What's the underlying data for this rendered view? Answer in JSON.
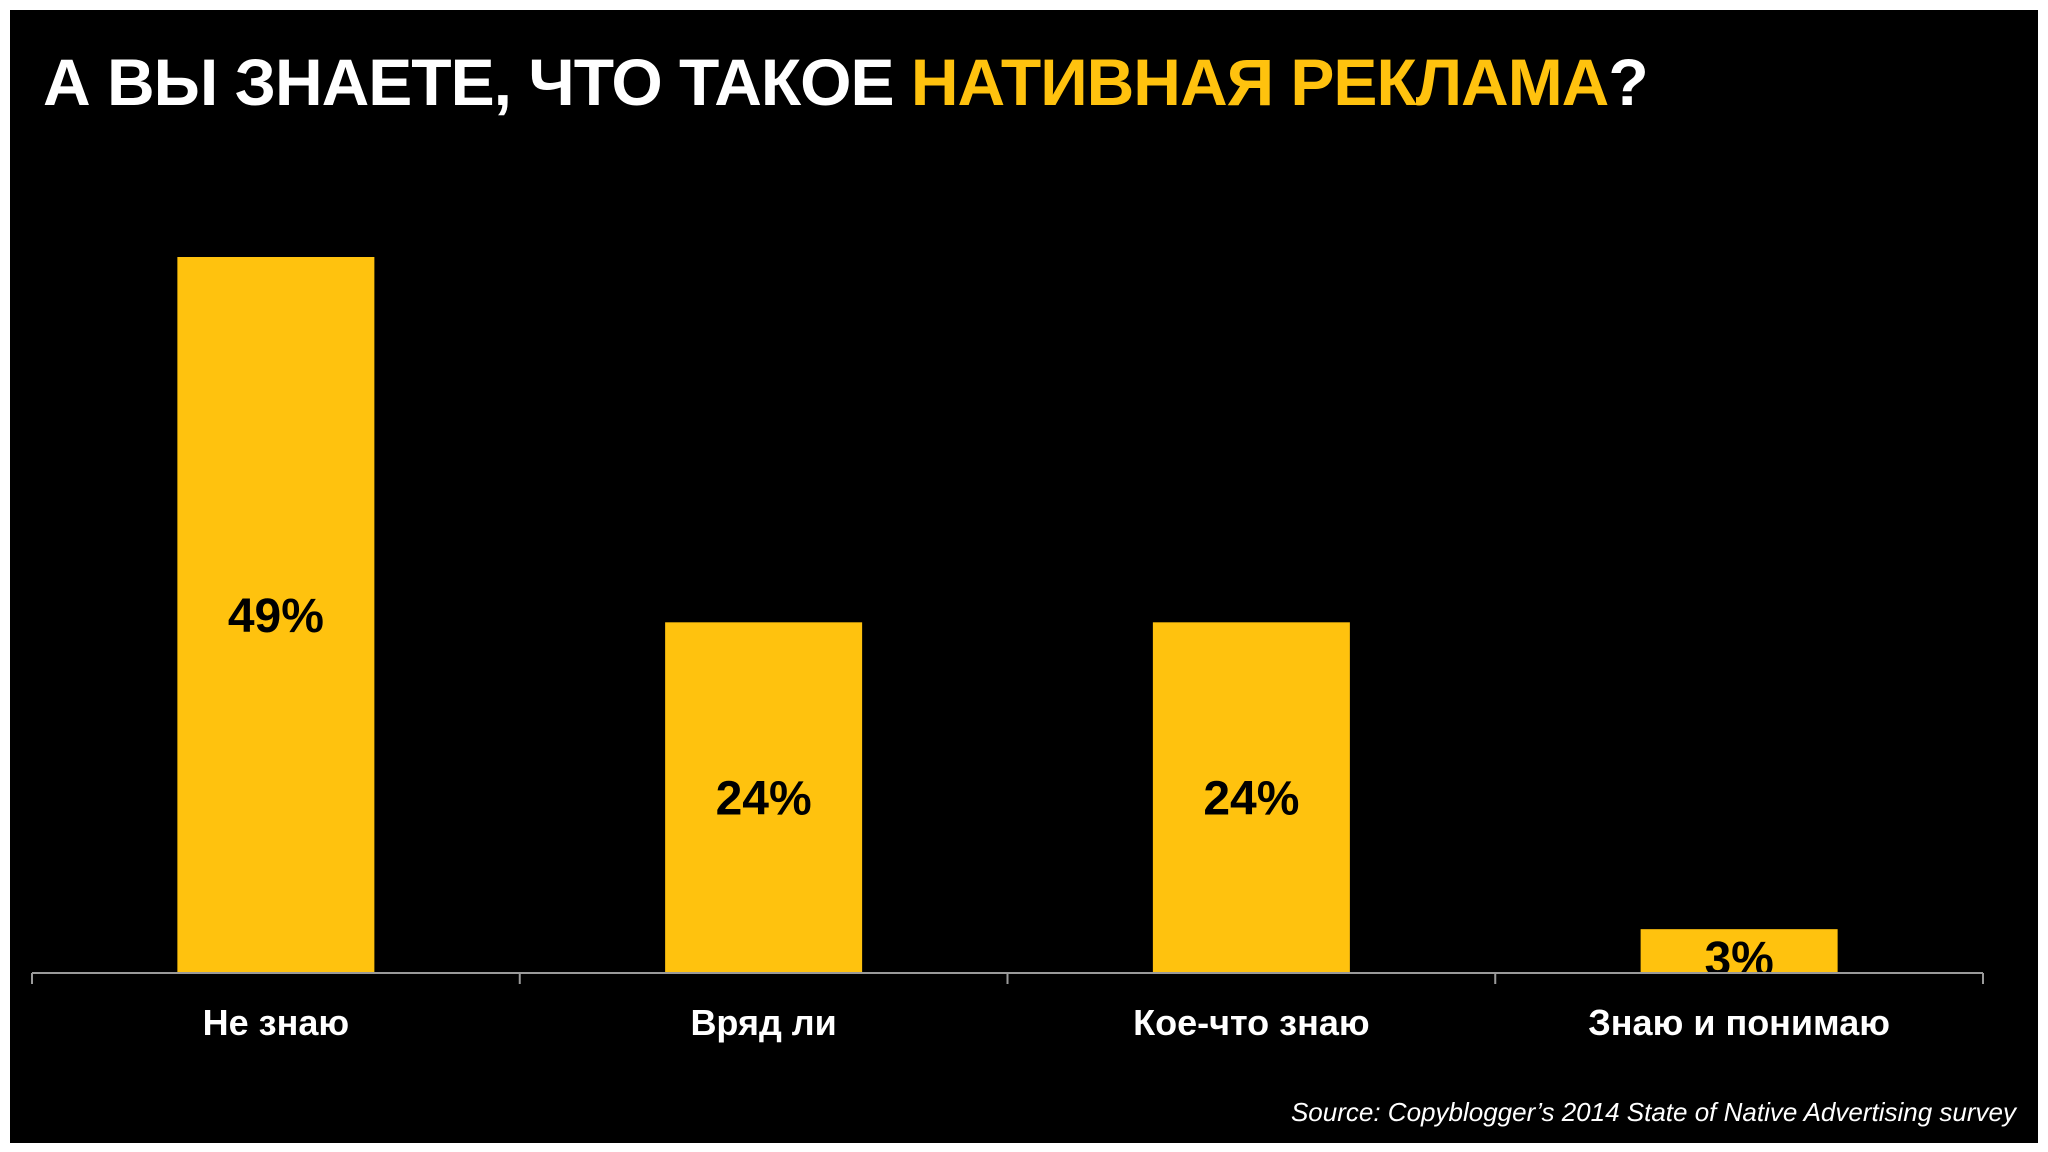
{
  "title": {
    "part1": "А ВЫ ЗНАЕТЕ, ЧТО ТАКОЕ ",
    "highlight": "НАТИВНАЯ РЕКЛАМА",
    "part2": "?"
  },
  "source": "Source: Copyblogger’s 2014 State of Native Advertising survey",
  "colors": {
    "background": "#000000",
    "bar": "#FFC20E",
    "text": "#ffffff",
    "axis": "#9a9a9a"
  },
  "chart_data": {
    "type": "bar",
    "title": "А ВЫ ЗНАЕТЕ, ЧТО ТАКОЕ НАТИВНАЯ РЕКЛАМА?",
    "categories": [
      "Не знаю",
      "Вряд ли",
      "Кое-что знаю",
      "Знаю и понимаю"
    ],
    "values": [
      49,
      24,
      24,
      3
    ],
    "value_labels": [
      "49%",
      "24%",
      "24%",
      "3%"
    ],
    "xlabel": "",
    "ylabel": "",
    "ylim": [
      0,
      49
    ],
    "grid": false,
    "legend": "none"
  }
}
